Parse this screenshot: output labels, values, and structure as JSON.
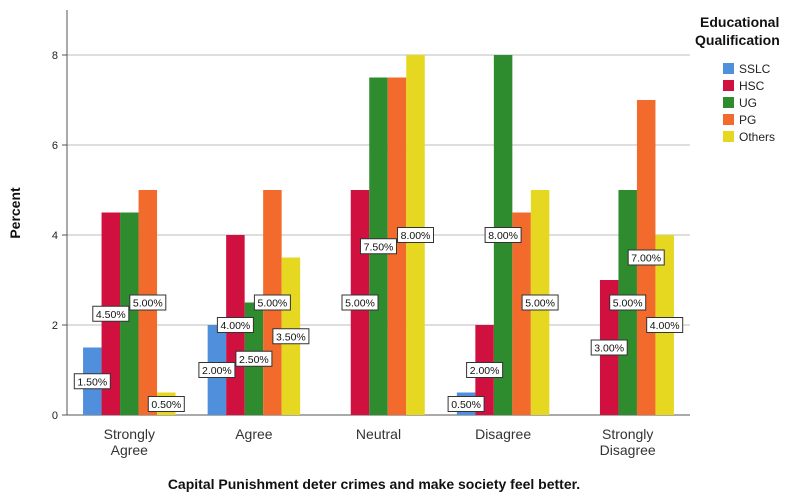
{
  "chart_data": {
    "type": "bar",
    "title": "",
    "xlabel": "Capital Punishment deter crimes and make society feel better.",
    "ylabel": "Percent",
    "ylim": [
      0,
      9
    ],
    "yticks": [
      "0",
      "2",
      "4",
      "6",
      "8"
    ],
    "grid": true,
    "legend": {
      "title": "Educational Qualification",
      "position": "right"
    },
    "categories": [
      [
        "Strongly",
        "Agree"
      ],
      [
        "Agree"
      ],
      [
        "Neutral"
      ],
      [
        "Disagree"
      ],
      [
        "Strongly",
        "Disagree"
      ]
    ],
    "series": [
      {
        "name": "SSLC",
        "color": "#4f8fdc",
        "values": [
          1.5,
          2.0,
          null,
          0.5,
          null
        ],
        "labels": [
          "1.50%",
          "2.00%",
          "",
          "0.50%",
          ""
        ]
      },
      {
        "name": "HSC",
        "color": "#d01140",
        "values": [
          4.5,
          4.0,
          5.0,
          2.0,
          3.0
        ],
        "labels": [
          "4.50%",
          "4.00%",
          "5.00%",
          "2.00%",
          "3.00%"
        ]
      },
      {
        "name": "UG",
        "color": "#2e8b2e",
        "values": [
          4.5,
          2.5,
          7.5,
          8.0,
          5.0
        ],
        "labels": [
          "",
          "2.50%",
          "7.50%",
          "8.00%",
          "5.00%"
        ]
      },
      {
        "name": "PG",
        "color": "#f26a2c",
        "values": [
          5.0,
          5.0,
          7.5,
          4.5,
          7.0
        ],
        "labels": [
          "5.00%",
          "5.00%",
          "",
          "",
          "7.00%"
        ]
      },
      {
        "name": "Others",
        "color": "#e6d820",
        "values": [
          0.5,
          3.5,
          8.0,
          5.0,
          4.0
        ],
        "labels": [
          "0.50%",
          "3.50%",
          "8.00%",
          "5.00%",
          "4.00%"
        ]
      }
    ]
  }
}
